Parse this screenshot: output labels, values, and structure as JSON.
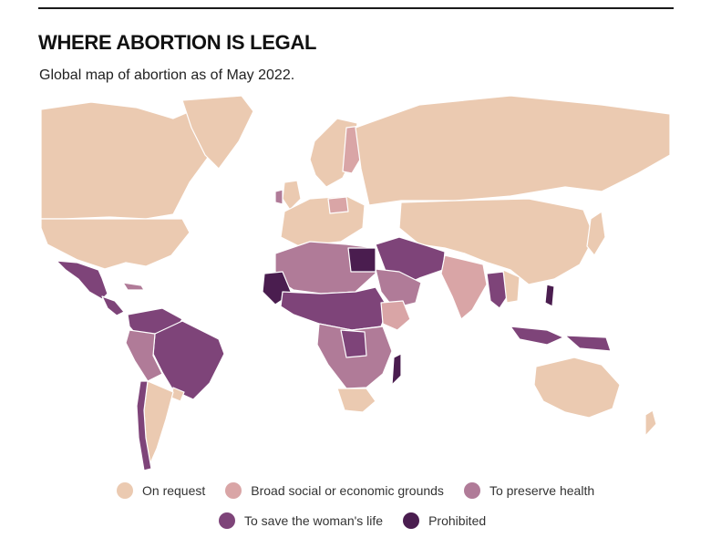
{
  "header": {
    "title": "WHERE ABORTION IS LEGAL",
    "subtitle": "Global map of abortion as of May 2022."
  },
  "colors": {
    "on_request": "#ebcab1",
    "broad": "#d9a5a6",
    "health": "#b07b98",
    "life": "#7e4479",
    "prohibited": "#4a1d4f"
  },
  "legend": {
    "row1": [
      {
        "label": "On request",
        "color": "#ebcab1"
      },
      {
        "label": "Broad social or economic grounds",
        "color": "#d9a5a6"
      },
      {
        "label": "To preserve health",
        "color": "#b07b98"
      }
    ],
    "row2": [
      {
        "label": "To save the woman's life",
        "color": "#7e4479"
      },
      {
        "label": "Prohibited",
        "color": "#4a1d4f"
      }
    ]
  }
}
